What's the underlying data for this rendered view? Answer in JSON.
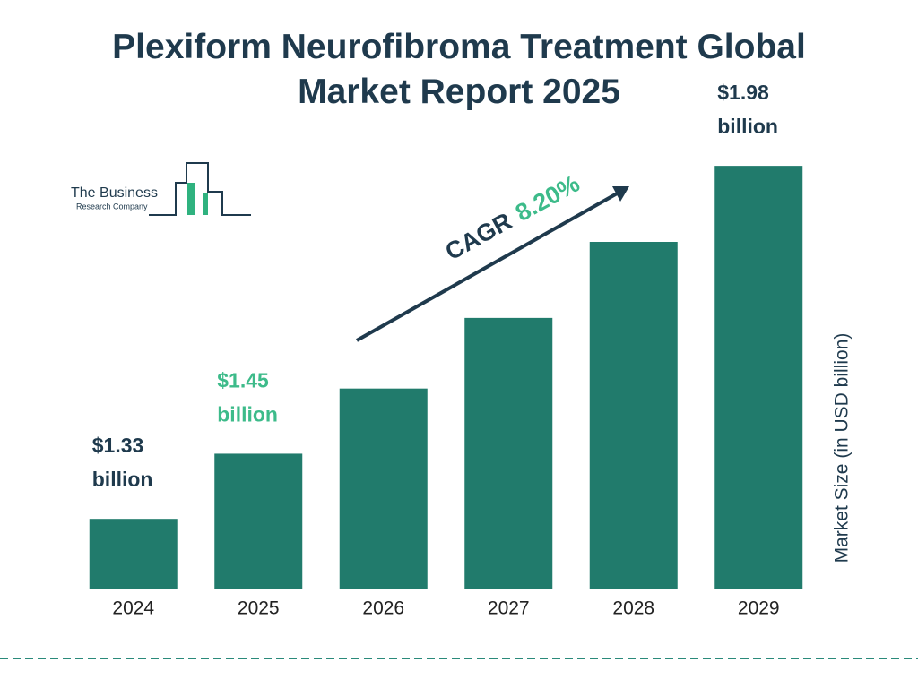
{
  "chart_data": {
    "type": "bar",
    "title": "Plexiform Neurofibroma Treatment Global Market Report 2025",
    "categories": [
      "2024",
      "2025",
      "2026",
      "2027",
      "2028",
      "2029"
    ],
    "values": [
      1.33,
      1.45,
      1.57,
      1.7,
      1.84,
      1.98
    ],
    "value_labels": [
      "$1.33 billion",
      "$1.45 billion",
      null,
      null,
      null,
      "$1.98 billion"
    ],
    "value_label_colors": [
      "#1f3a4d",
      "#3dbb8a",
      null,
      null,
      null,
      "#1f3a4d"
    ],
    "color": "#217b6c",
    "ylim": [
      1.2,
      2.0
    ],
    "y_axis_label": "Market Size (in USD billion)",
    "cagr_label": "CAGR",
    "cagr_value": "8.20%"
  },
  "logo": {
    "line1": "The Business",
    "line2": "Research Company"
  }
}
